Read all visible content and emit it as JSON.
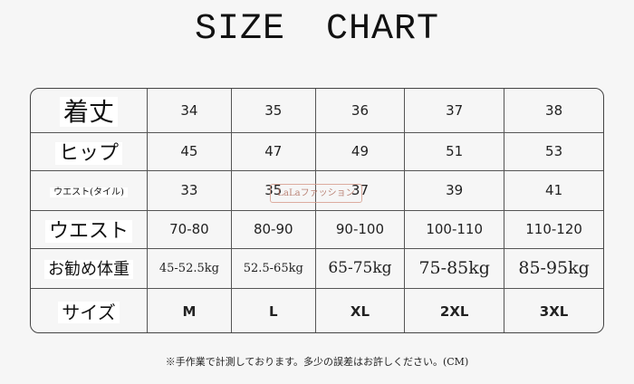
{
  "title": "SIZE CHART",
  "rows": [
    {
      "label": "着丈",
      "values": [
        "34",
        "35",
        "36",
        "37",
        "38"
      ],
      "size": "28px"
    },
    {
      "label": "ヒップ",
      "values": [
        "45",
        "47",
        "49",
        "51",
        "53"
      ],
      "size": "22px"
    },
    {
      "label": "ウエスト(タイル)",
      "values": [
        "33",
        "35",
        "37",
        "39",
        "41"
      ],
      "size": "10px"
    },
    {
      "label": "ウエスト",
      "values": [
        "70-80",
        "80-90",
        "90-100",
        "100-110",
        "110-120"
      ],
      "size": "22px"
    },
    {
      "label": "お勧め体重",
      "values": [
        "45-52.5kg",
        "52.5-65kg",
        "65-75kg",
        "75-85kg",
        "85-95kg"
      ],
      "size": "18px"
    },
    {
      "label": "サイズ",
      "values": [
        "M",
        "L",
        "XL",
        "2XL",
        "3XL"
      ],
      "size": "20px"
    }
  ],
  "note": "※手作業で計測しております。多少の誤差はお許しください。(CM)",
  "watermark": "LaLaファッション"
}
